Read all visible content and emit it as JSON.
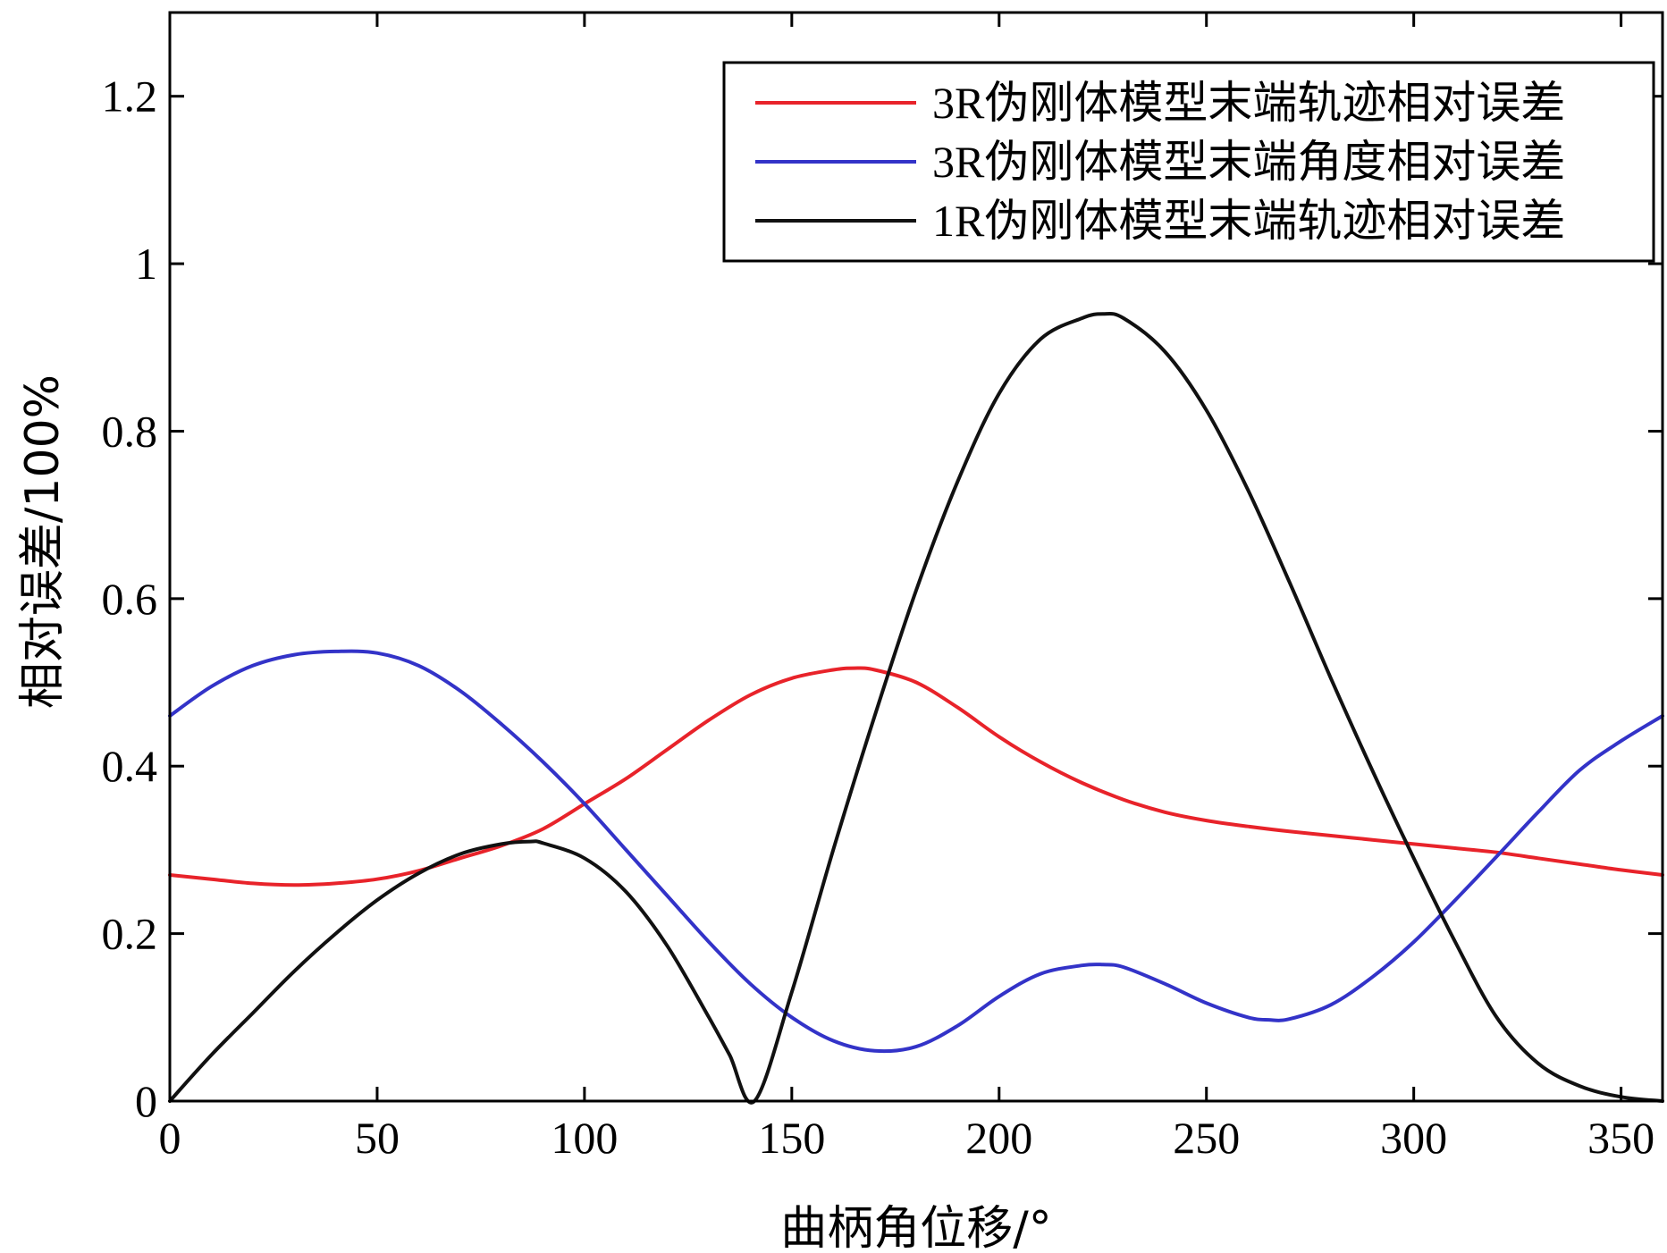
{
  "chart_data": {
    "type": "line",
    "title": "",
    "xlabel": "曲柄角位移/°",
    "ylabel": "相对误差/100%",
    "xlim": [
      0,
      360
    ],
    "ylim": [
      0,
      1.3
    ],
    "xticks": [
      0,
      50,
      100,
      150,
      200,
      250,
      300,
      350
    ],
    "yticks": [
      0,
      0.2,
      0.4,
      0.6,
      0.8,
      1,
      1.2
    ],
    "ytick_labels": [
      "0",
      "0.2",
      "0.4",
      "0.6",
      "0.8",
      "1",
      "1.2"
    ],
    "grid": false,
    "legend_position": "top-right",
    "series": [
      {
        "name": "3R伪刚体模型末端轨迹相对误差",
        "color": "#e8232a",
        "x": [
          0,
          10,
          20,
          30,
          40,
          50,
          60,
          70,
          80,
          90,
          100,
          110,
          120,
          130,
          140,
          150,
          160,
          165,
          170,
          180,
          190,
          200,
          210,
          220,
          230,
          240,
          250,
          260,
          270,
          280,
          290,
          300,
          310,
          320,
          330,
          340,
          350,
          360
        ],
        "y": [
          0.27,
          0.265,
          0.26,
          0.258,
          0.26,
          0.265,
          0.275,
          0.29,
          0.305,
          0.325,
          0.355,
          0.385,
          0.42,
          0.455,
          0.485,
          0.505,
          0.515,
          0.517,
          0.515,
          0.5,
          0.47,
          0.435,
          0.405,
          0.38,
          0.36,
          0.345,
          0.335,
          0.328,
          0.322,
          0.317,
          0.312,
          0.307,
          0.302,
          0.297,
          0.29,
          0.283,
          0.276,
          0.27
        ]
      },
      {
        "name": "3R伪刚体模型末端角度相对误差",
        "color": "#3333c8",
        "x": [
          0,
          10,
          20,
          30,
          40,
          50,
          60,
          70,
          80,
          90,
          100,
          110,
          120,
          130,
          140,
          150,
          160,
          170,
          180,
          190,
          200,
          210,
          220,
          225,
          230,
          240,
          250,
          260,
          265,
          270,
          280,
          290,
          300,
          310,
          320,
          330,
          340,
          350,
          360
        ],
        "y": [
          0.46,
          0.495,
          0.52,
          0.533,
          0.537,
          0.535,
          0.52,
          0.49,
          0.45,
          0.405,
          0.355,
          0.3,
          0.245,
          0.19,
          0.14,
          0.1,
          0.072,
          0.06,
          0.065,
          0.09,
          0.125,
          0.152,
          0.162,
          0.163,
          0.16,
          0.14,
          0.117,
          0.1,
          0.097,
          0.098,
          0.115,
          0.148,
          0.19,
          0.24,
          0.292,
          0.345,
          0.395,
          0.43,
          0.46
        ]
      },
      {
        "name": "1R伪刚体模型末端轨迹相对误差",
        "color": "#111111",
        "x": [
          0,
          10,
          20,
          30,
          40,
          50,
          60,
          70,
          80,
          87,
          90,
          100,
          110,
          120,
          130,
          135,
          141,
          150,
          160,
          170,
          180,
          190,
          200,
          210,
          220,
          225,
          230,
          240,
          250,
          260,
          270,
          280,
          290,
          300,
          310,
          320,
          330,
          340,
          350,
          360
        ],
        "y": [
          0,
          0.055,
          0.105,
          0.155,
          0.2,
          0.24,
          0.272,
          0.295,
          0.307,
          0.31,
          0.308,
          0.29,
          0.25,
          0.185,
          0.1,
          0.055,
          0.0,
          0.13,
          0.3,
          0.46,
          0.61,
          0.74,
          0.845,
          0.91,
          0.935,
          0.94,
          0.935,
          0.895,
          0.825,
          0.73,
          0.62,
          0.505,
          0.395,
          0.29,
          0.19,
          0.1,
          0.045,
          0.018,
          0.005,
          0
        ]
      }
    ]
  }
}
